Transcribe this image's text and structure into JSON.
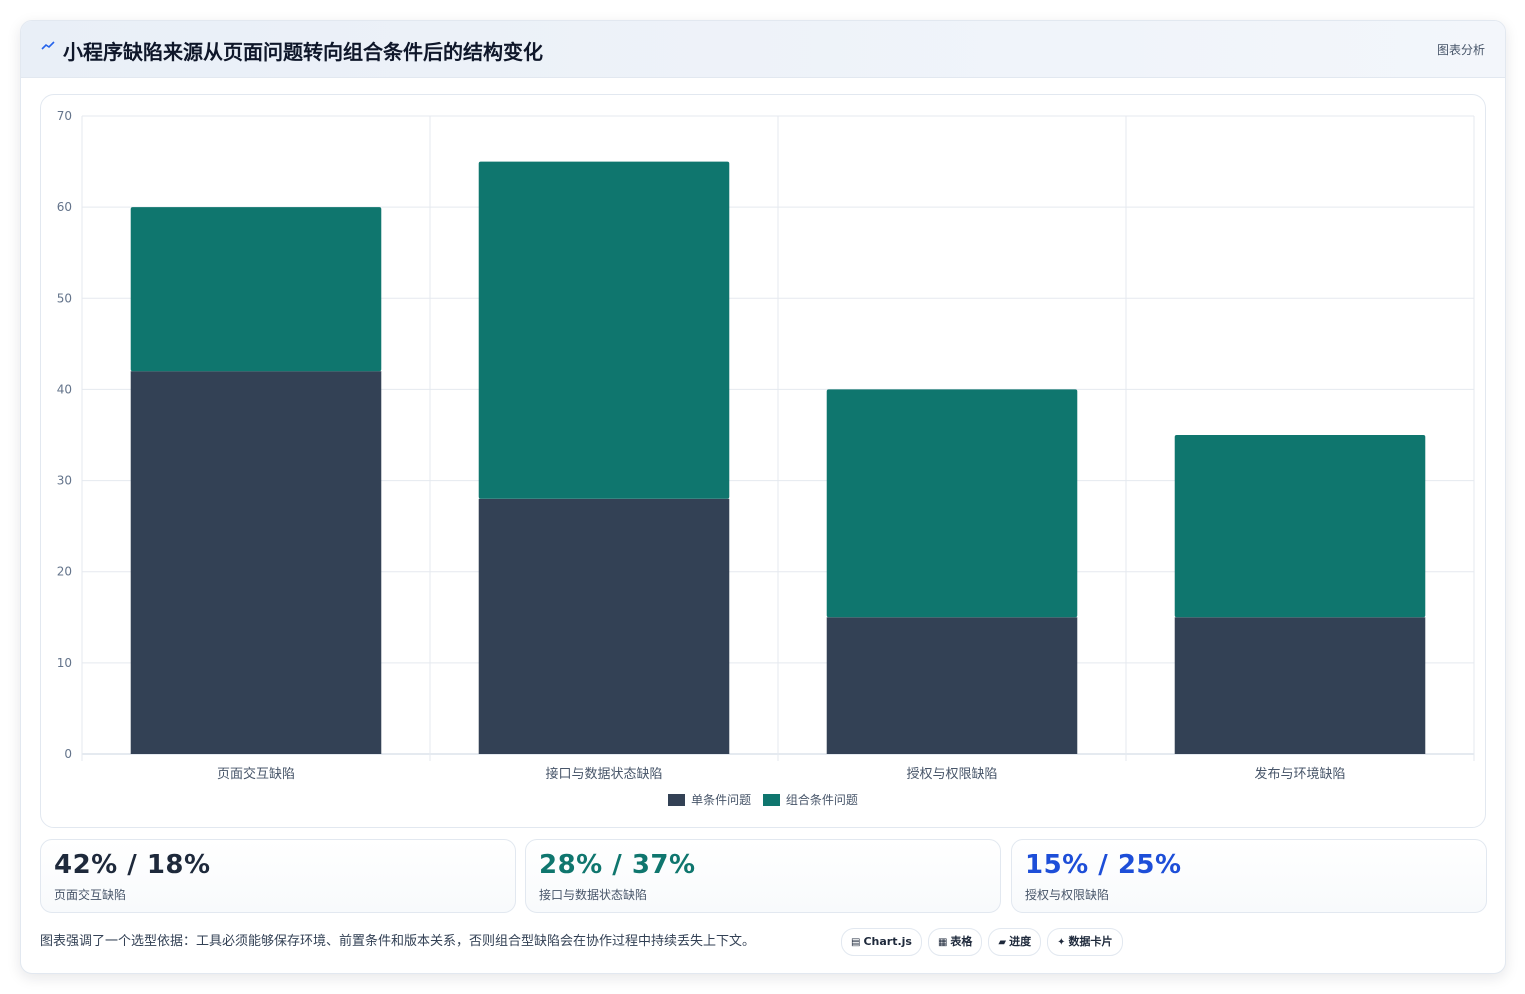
{
  "header": {
    "title": "小程序缺陷来源从页面问题转向组合条件后的结构变化",
    "tag": "图表分析"
  },
  "colors": {
    "single": "#334155",
    "combo": "#0f766e",
    "stat1": "#1e293b",
    "stat2": "#0f766e",
    "stat3": "#1d4ed8"
  },
  "chart_data": {
    "type": "bar",
    "stacked": true,
    "categories": [
      "页面交互缺陷",
      "接口与数据状态缺陷",
      "授权与权限缺陷",
      "发布与环境缺陷"
    ],
    "series": [
      {
        "name": "单条件问题",
        "values": [
          42,
          28,
          15,
          15
        ],
        "color": "#334155"
      },
      {
        "name": "组合条件问题",
        "values": [
          18,
          37,
          25,
          20
        ],
        "color": "#0f766e"
      }
    ],
    "ylim": [
      0,
      70
    ],
    "yticks": [
      0,
      10,
      20,
      30,
      40,
      50,
      60,
      70
    ],
    "grid": true,
    "legend": "bottom"
  },
  "stats": [
    {
      "value": "42% / 18%",
      "label": "页面交互缺陷"
    },
    {
      "value": "28% / 37%",
      "label": "接口与数据状态缺陷"
    },
    {
      "value": "15% / 25%",
      "label": "授权与权限缺陷"
    }
  ],
  "footer": {
    "note": "图表强调了一个选型依据：工具必须能够保存环境、前置条件和版本关系，否则组合型缺陷会在协作过程中持续丢失上下文。",
    "chips": [
      {
        "icon": "chart-icon",
        "glyph": "▤",
        "label": "Chart.js"
      },
      {
        "icon": "table-icon",
        "glyph": "▦",
        "label": "表格"
      },
      {
        "icon": "progress-icon",
        "glyph": "▰",
        "label": "进度"
      },
      {
        "icon": "sparkle-icon",
        "glyph": "✦",
        "label": "数据卡片"
      }
    ]
  }
}
